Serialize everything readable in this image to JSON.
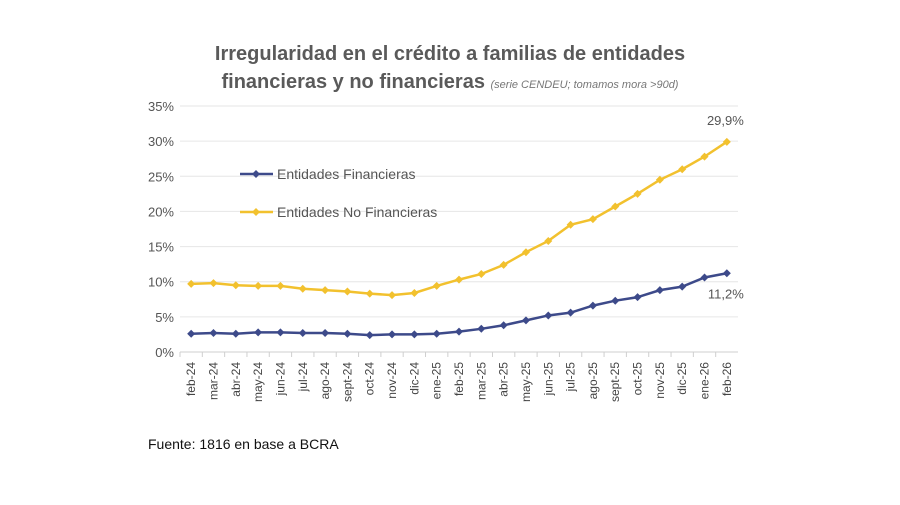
{
  "chart_data": {
    "type": "line",
    "title_line1": "Irregularidad en el crédito a familias de entidades",
    "title_line2": "financieras y no financieras",
    "subtitle": "(serie CENDEU; tomamos mora >90d)",
    "categories": [
      "feb-24",
      "mar-24",
      "abr-24",
      "may-24",
      "jun-24",
      "jul-24",
      "ago-24",
      "sept-24",
      "oct-24",
      "nov-24",
      "dic-24",
      "ene-25",
      "feb-25",
      "mar-25",
      "abr-25",
      "may-25",
      "jun-25",
      "jul-25",
      "ago-25",
      "sept-25",
      "oct-25",
      "nov-25",
      "dic-25",
      "ene-26",
      "feb-26"
    ],
    "ylim": [
      0,
      35
    ],
    "yticks": [
      "0%",
      "5%",
      "10%",
      "15%",
      "20%",
      "25%",
      "30%",
      "35%"
    ],
    "grid": true,
    "legend_placement": "top-left",
    "series": [
      {
        "name": "Entidades Financieras",
        "color": "#3d4a8a",
        "values": [
          2.6,
          2.7,
          2.6,
          2.8,
          2.8,
          2.7,
          2.7,
          2.6,
          2.4,
          2.5,
          2.5,
          2.6,
          2.9,
          3.3,
          3.8,
          4.5,
          5.2,
          5.6,
          6.6,
          7.3,
          7.8,
          8.8,
          9.3,
          10.6,
          11.2
        ],
        "end_label": "11,2%"
      },
      {
        "name": "Entidades No Financieras",
        "color": "#f2c12e",
        "values": [
          9.7,
          9.8,
          9.5,
          9.4,
          9.4,
          9.0,
          8.8,
          8.6,
          8.3,
          8.1,
          8.4,
          9.4,
          10.3,
          11.1,
          12.4,
          14.2,
          15.8,
          18.1,
          18.9,
          20.7,
          22.5,
          24.5,
          26.0,
          27.8,
          29.9
        ],
        "end_label": "29,9%"
      }
    ]
  },
  "source": "Fuente: 1816 en base a BCRA"
}
